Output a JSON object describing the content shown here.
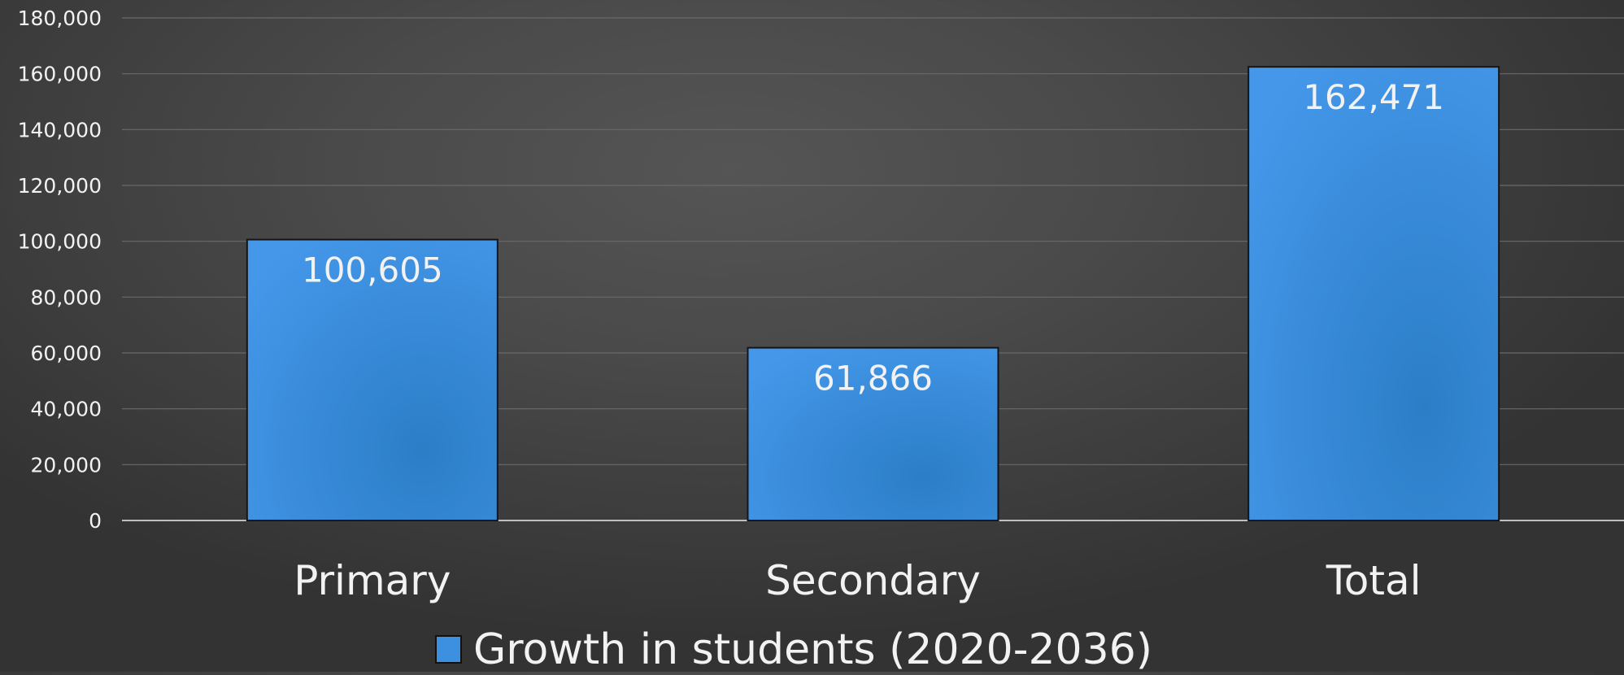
{
  "chart_data": {
    "type": "bar",
    "categories": [
      "Primary",
      "Secondary",
      "Total"
    ],
    "series": [
      {
        "name": "Growth in students (2020-2036)",
        "values": [
          100605,
          61866,
          162471
        ]
      }
    ],
    "data_labels": [
      "100,605",
      "61,866",
      "162,471"
    ],
    "y_ticks": [
      0,
      20000,
      40000,
      60000,
      80000,
      100000,
      120000,
      140000,
      160000,
      180000
    ],
    "y_tick_labels": [
      "0",
      "20,000",
      "40,000",
      "60,000",
      "80,000",
      "100,000",
      "120,000",
      "140,000",
      "160,000",
      "180,000"
    ],
    "ylim": [
      0,
      180000
    ],
    "grid": true,
    "legend_position": "bottom",
    "colors": {
      "bar": "#3d8fe0",
      "bar_dark": "#2a78bd",
      "background": "#484848"
    }
  }
}
